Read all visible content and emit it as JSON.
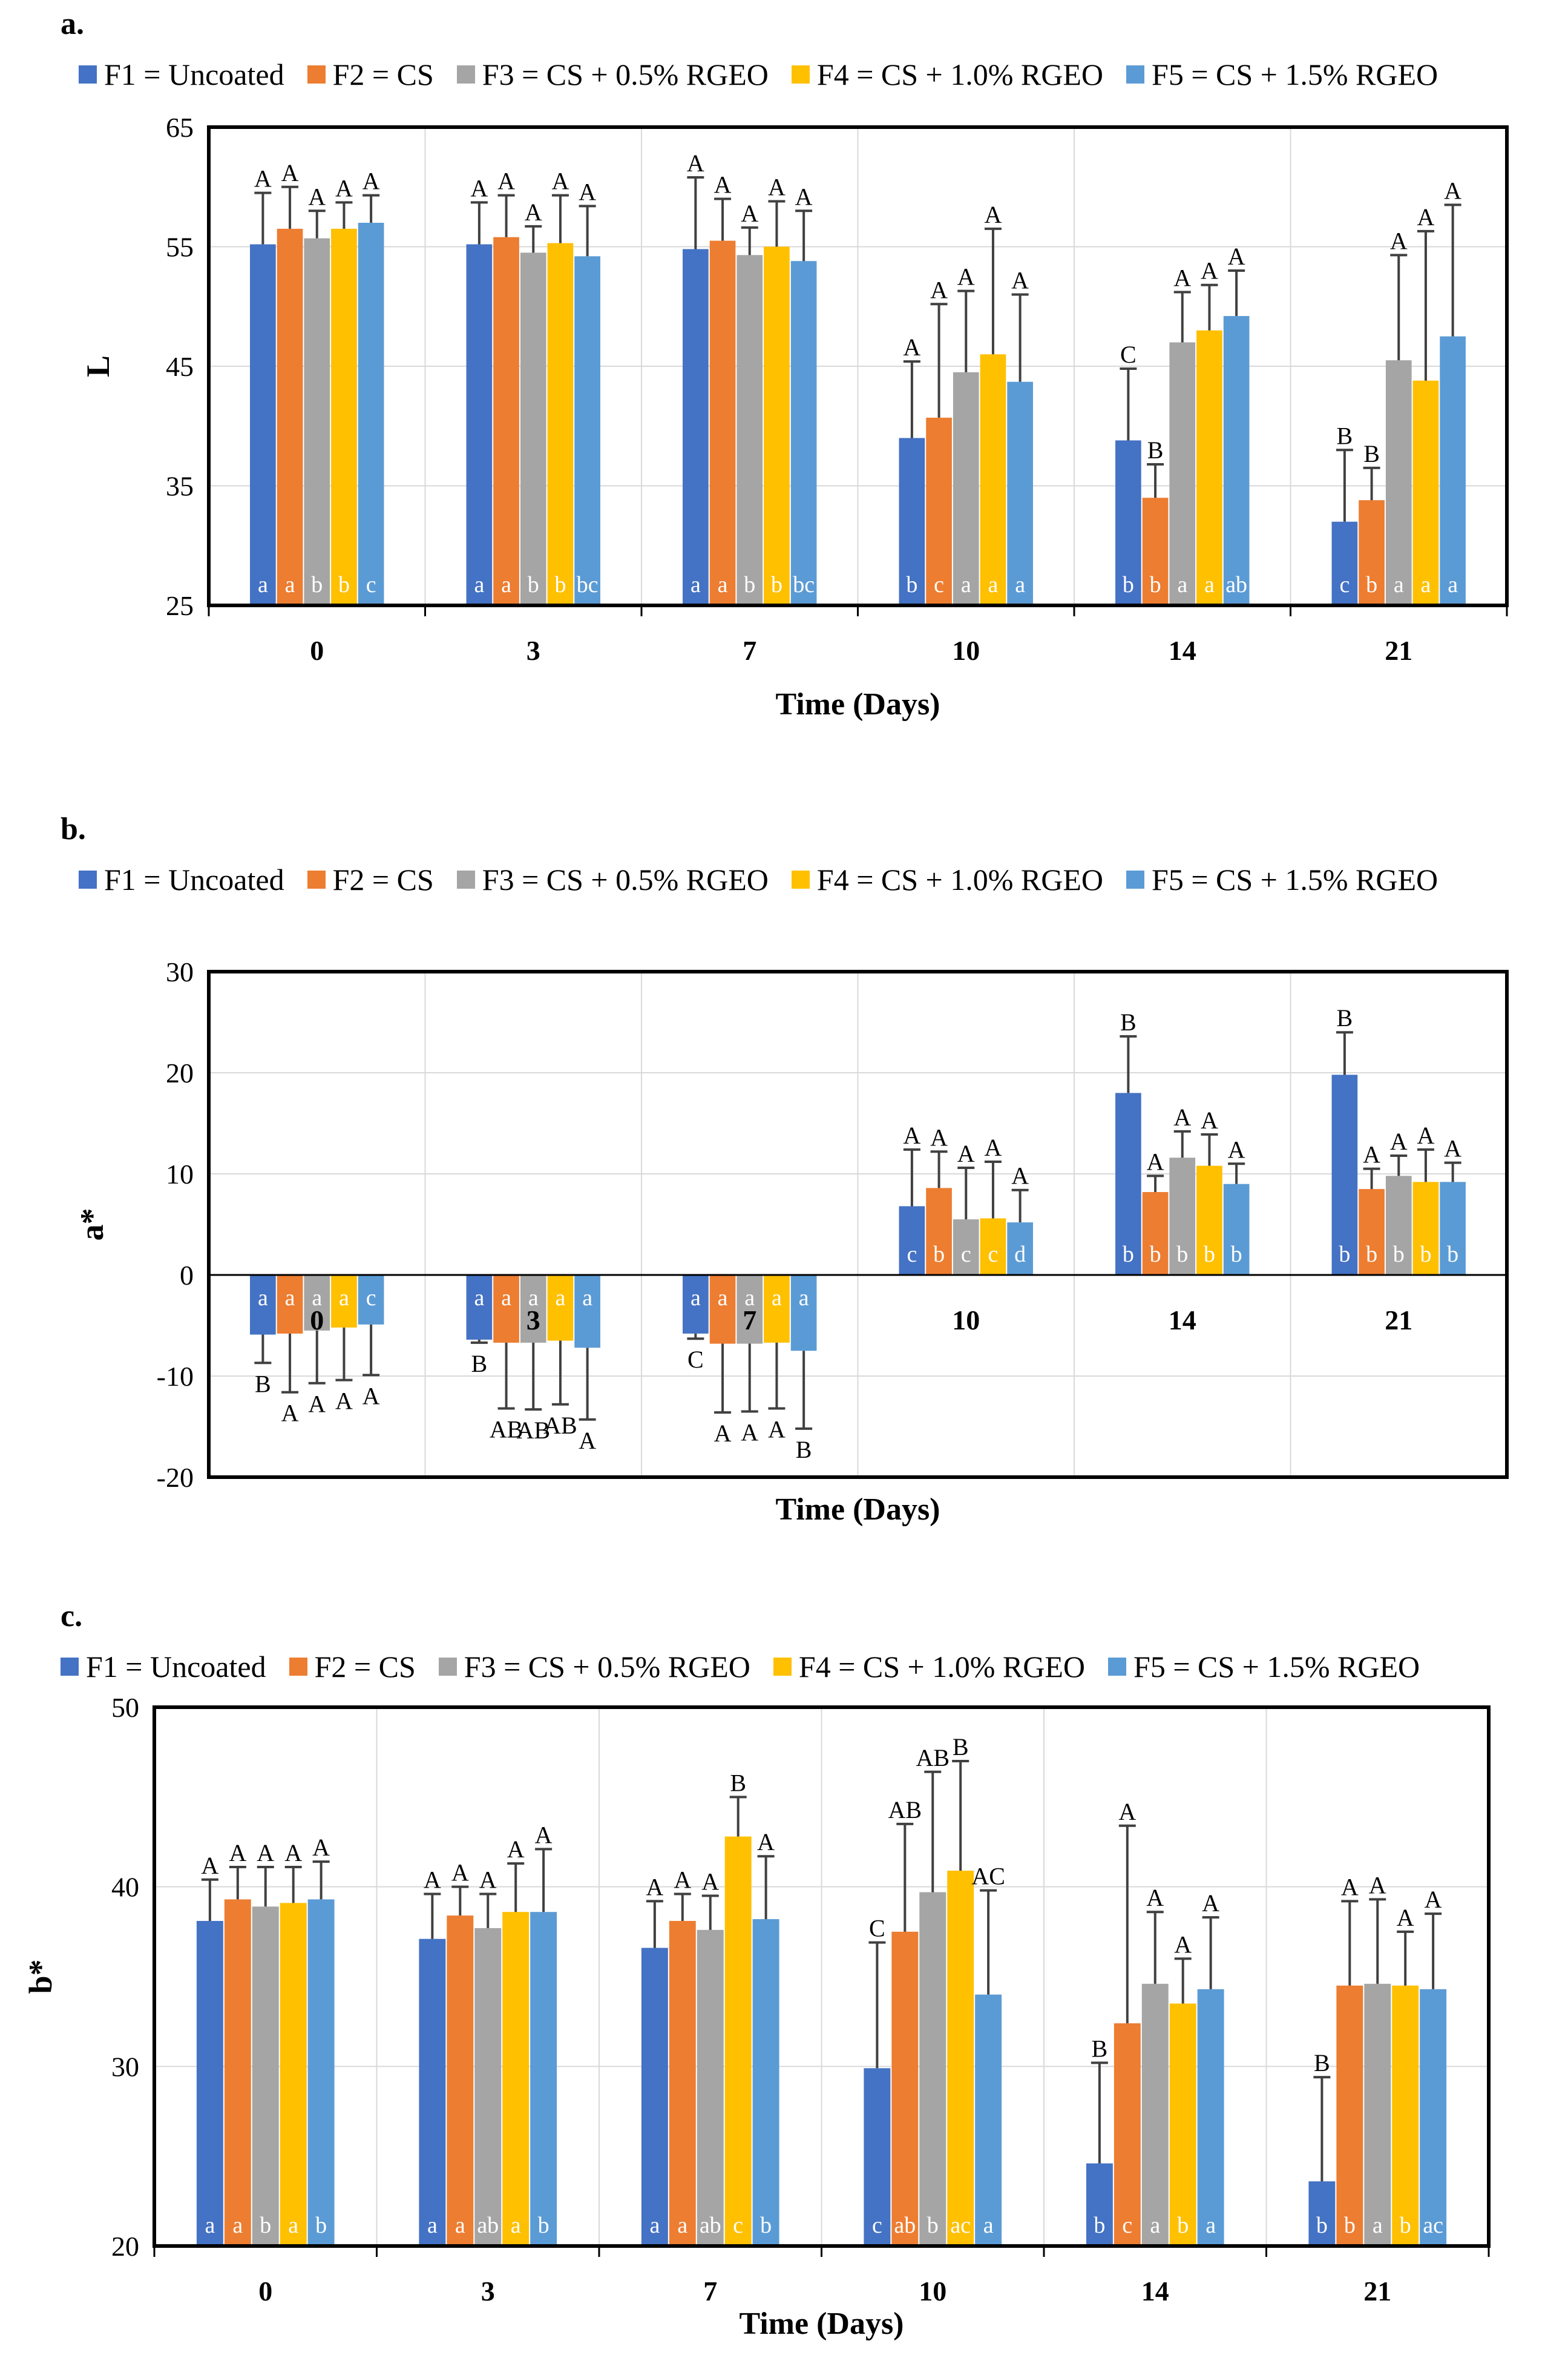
{
  "colors": {
    "F1": "#4472c4",
    "F2": "#ed7d31",
    "F3": "#a5a5a5",
    "F4": "#ffc000",
    "F5": "#5b9bd5"
  },
  "chart_data": [
    {
      "id": "a",
      "panel_label": "a.",
      "type": "bar",
      "xlabel": "Time (Days)",
      "ylabel": "L",
      "ylim": [
        25,
        65
      ],
      "yticks": [
        25,
        35,
        45,
        55,
        65
      ],
      "categories": [
        "0",
        "3",
        "7",
        "10",
        "14",
        "21"
      ],
      "series": [
        {
          "name": "F1 = Uncoated",
          "color_key": "F1",
          "values": [
            55.2,
            55.2,
            54.8,
            39.0,
            38.8,
            32.0
          ],
          "errors": [
            4.3,
            3.5,
            6.0,
            6.4,
            6.0,
            6.0
          ],
          "upper_letters": [
            "A",
            "A",
            "A",
            "A",
            "C",
            "B"
          ],
          "inner_letters": [
            "a",
            "a",
            "a",
            "b",
            "b",
            "c"
          ]
        },
        {
          "name": "F2 = CS",
          "color_key": "F2",
          "values": [
            56.5,
            55.8,
            55.5,
            40.7,
            34.0,
            33.8
          ],
          "errors": [
            3.5,
            3.5,
            3.5,
            9.5,
            2.8,
            2.7
          ],
          "upper_letters": [
            "A",
            "A",
            "A",
            "A",
            "B",
            "B"
          ],
          "inner_letters": [
            "a",
            "a",
            "a",
            "c",
            "b",
            "b"
          ]
        },
        {
          "name": "F3 = CS + 0.5% RGEO",
          "color_key": "F3",
          "values": [
            55.7,
            54.5,
            54.3,
            44.5,
            47.0,
            45.5
          ],
          "errors": [
            2.3,
            2.2,
            2.3,
            6.8,
            4.2,
            8.8
          ],
          "upper_letters": [
            "A",
            "A",
            "A",
            "A",
            "A",
            "A"
          ],
          "inner_letters": [
            "b",
            "b",
            "b",
            "a",
            "a",
            "a"
          ]
        },
        {
          "name": "F4 = CS + 1.0% RGEO",
          "color_key": "F4",
          "values": [
            56.5,
            55.3,
            55.0,
            46.0,
            48.0,
            43.8
          ],
          "errors": [
            2.2,
            4.0,
            3.8,
            10.5,
            3.8,
            12.5
          ],
          "upper_letters": [
            "A",
            "A",
            "A",
            "A",
            "A",
            "A"
          ],
          "inner_letters": [
            "b",
            "b",
            "b",
            "a",
            "a",
            "a"
          ]
        },
        {
          "name": "F5 = CS + 1.5% RGEO",
          "color_key": "F5",
          "values": [
            57.0,
            54.2,
            53.8,
            43.7,
            49.2,
            47.5
          ],
          "errors": [
            2.3,
            4.2,
            4.2,
            7.3,
            3.8,
            11.0
          ],
          "upper_letters": [
            "A",
            "A",
            "A",
            "A",
            "A",
            "A"
          ],
          "inner_letters": [
            "c",
            "bc",
            "bc",
            "a",
            "ab",
            "a"
          ]
        }
      ]
    },
    {
      "id": "b",
      "panel_label": "b.",
      "type": "bar",
      "xlabel": "Time (Days)",
      "ylabel": "a*",
      "ylim": [
        -20,
        30
      ],
      "yticks": [
        -20,
        -10,
        0,
        10,
        20,
        30
      ],
      "categories": [
        "0",
        "3",
        "7",
        "10",
        "14",
        "21"
      ],
      "series": [
        {
          "name": "F1 = Uncoated",
          "color_key": "F1",
          "values": [
            -5.9,
            -6.4,
            -5.8,
            6.8,
            18.0,
            19.8
          ],
          "errors": [
            2.8,
            0.3,
            0.5,
            5.6,
            5.6,
            4.2
          ],
          "upper_letters": [
            "B",
            "B",
            "C",
            "A",
            "B",
            "B"
          ],
          "inner_letters": [
            "a",
            "a",
            "a",
            "c",
            "b",
            "b"
          ]
        },
        {
          "name": "F2 = CS",
          "color_key": "F2",
          "values": [
            -5.8,
            -6.7,
            -6.8,
            8.6,
            8.2,
            8.5
          ],
          "errors": [
            5.8,
            6.5,
            6.8,
            3.6,
            1.6,
            2.0
          ],
          "upper_letters": [
            "A",
            "AB",
            "A",
            "A",
            "A",
            "A"
          ],
          "inner_letters": [
            "a",
            "a",
            "a",
            "b",
            "b",
            "b"
          ]
        },
        {
          "name": "F3 = CS + 0.5% RGEO",
          "color_key": "F3",
          "values": [
            -5.5,
            -6.7,
            -6.8,
            5.5,
            11.6,
            9.8
          ],
          "errors": [
            5.2,
            6.6,
            6.7,
            5.1,
            2.6,
            2.0
          ],
          "upper_letters": [
            "A",
            "AB",
            "A",
            "A",
            "A",
            "A"
          ],
          "inner_letters": [
            "a",
            "a",
            "a",
            "c",
            "b",
            "b"
          ]
        },
        {
          "name": "F4 = CS + 1.0% RGEO",
          "color_key": "F4",
          "values": [
            -5.2,
            -6.5,
            -6.7,
            5.6,
            10.8,
            9.2
          ],
          "errors": [
            5.2,
            6.3,
            6.5,
            5.6,
            3.1,
            3.2
          ],
          "upper_letters": [
            "A",
            "AB",
            "A",
            "A",
            "A",
            "A"
          ],
          "inner_letters": [
            "a",
            "a",
            "a",
            "c",
            "b",
            "b"
          ]
        },
        {
          "name": "F5 = CS + 1.5% RGEO",
          "color_key": "F5",
          "values": [
            -4.9,
            -7.2,
            -7.5,
            5.2,
            9.0,
            9.2
          ],
          "errors": [
            5.0,
            7.1,
            7.7,
            3.2,
            2.0,
            1.9
          ],
          "upper_letters": [
            "A",
            "A",
            "B",
            "A",
            "A",
            "A"
          ],
          "inner_letters": [
            "c",
            "a",
            "a",
            "d",
            "b",
            "b"
          ]
        }
      ]
    },
    {
      "id": "c",
      "panel_label": "c.",
      "type": "bar",
      "xlabel": "Time (Days)",
      "ylabel": "b*",
      "ylim": [
        20,
        50
      ],
      "yticks": [
        20,
        30,
        40,
        50
      ],
      "categories": [
        "0",
        "3",
        "7",
        "10",
        "14",
        "21"
      ],
      "series": [
        {
          "name": "F1 = Uncoated",
          "color_key": "F1",
          "values": [
            38.1,
            37.1,
            36.6,
            29.9,
            24.6,
            23.6
          ],
          "errors": [
            2.3,
            2.5,
            2.6,
            7.0,
            5.6,
            5.8
          ],
          "upper_letters": [
            "A",
            "A",
            "A",
            "C",
            "B",
            "B"
          ],
          "inner_letters": [
            "a",
            "a",
            "a",
            "c",
            "b",
            "b"
          ]
        },
        {
          "name": "F2 = CS",
          "color_key": "F2",
          "values": [
            39.3,
            38.4,
            38.1,
            37.5,
            32.4,
            34.5
          ],
          "errors": [
            1.8,
            1.6,
            1.5,
            6.0,
            11.0,
            4.7
          ],
          "upper_letters": [
            "A",
            "A",
            "A",
            "AB",
            "A",
            "A"
          ],
          "inner_letters": [
            "a",
            "a",
            "a",
            "ab",
            "c",
            "b"
          ]
        },
        {
          "name": "F3 = CS + 0.5% RGEO",
          "color_key": "F3",
          "values": [
            38.9,
            37.7,
            37.6,
            39.7,
            34.6,
            34.6
          ],
          "errors": [
            2.2,
            1.9,
            1.9,
            6.7,
            4.0,
            4.7
          ],
          "upper_letters": [
            "A",
            "A",
            "A",
            "AB",
            "A",
            "A"
          ],
          "inner_letters": [
            "b",
            "ab",
            "ab",
            "b",
            "a",
            "a"
          ]
        },
        {
          "name": "F4 = CS + 1.0% RGEO",
          "color_key": "F4",
          "values": [
            39.1,
            38.6,
            42.8,
            40.9,
            33.5,
            34.5
          ],
          "errors": [
            2.0,
            2.7,
            2.2,
            6.1,
            2.5,
            3.0
          ],
          "upper_letters": [
            "A",
            "A",
            "B",
            "B",
            "A",
            "A"
          ],
          "inner_letters": [
            "a",
            "a",
            "c",
            "ac",
            "b",
            "b"
          ]
        },
        {
          "name": "F5 = CS + 1.5% RGEO",
          "color_key": "F5",
          "values": [
            39.3,
            38.6,
            38.2,
            34.0,
            34.3,
            34.3
          ],
          "errors": [
            2.1,
            3.5,
            3.5,
            5.8,
            4.0,
            4.2
          ],
          "upper_letters": [
            "A",
            "A",
            "A",
            "AC",
            "A",
            "A"
          ],
          "inner_letters": [
            "b",
            "b",
            "b",
            "a",
            "a",
            "ac"
          ]
        }
      ]
    }
  ]
}
